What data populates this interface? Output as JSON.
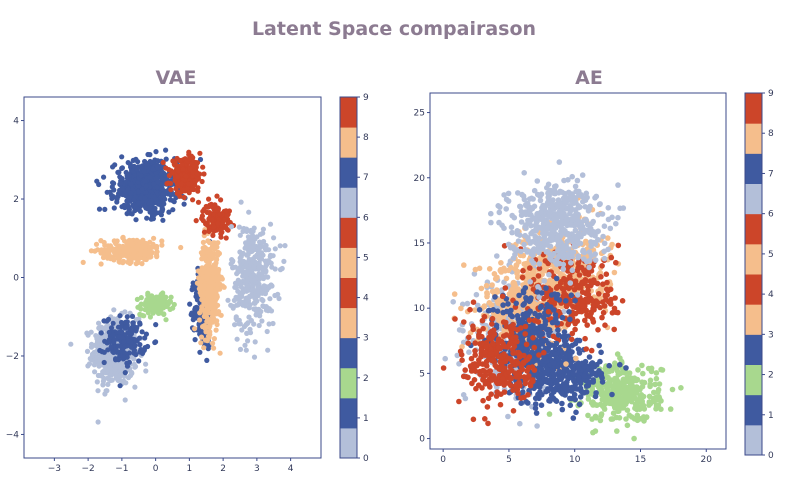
{
  "title": "Latent Space compairason",
  "chart_data": [
    {
      "type": "scatter",
      "title": "VAE",
      "xlim": [
        -3.9,
        4.9
      ],
      "ylim": [
        -4.6,
        4.6
      ],
      "x_ticks": [
        -3,
        -2,
        -1,
        0,
        1,
        2,
        3,
        4
      ],
      "y_ticks": [
        -4,
        -2,
        0,
        2,
        4
      ],
      "colorbar": {
        "min": 0,
        "max": 9,
        "ticks": [
          0,
          1,
          2,
          3,
          4,
          5,
          6,
          7,
          8,
          9
        ]
      },
      "colormap": [
        "#b3bfd9",
        "#3f5aa0",
        "#a8d88e",
        "#3f5aa0",
        "#f5be8c",
        "#cc4529",
        "#f5be8c",
        "#cc4529",
        "#b3bfd9",
        "#3f5aa0",
        "#f5be8c",
        "#cc4529"
      ],
      "clusters": [
        {
          "label": 0,
          "center": [
            -1.2,
            -1.9
          ],
          "spread": [
            0.65,
            0.85
          ],
          "count": 500
        },
        {
          "label": 1,
          "center": [
            -0.9,
            -1.6
          ],
          "spread": [
            0.6,
            0.6
          ],
          "count": 150
        },
        {
          "label": 2,
          "center": [
            0.0,
            -0.7
          ],
          "spread": [
            0.45,
            0.25
          ],
          "count": 150
        },
        {
          "label": 3,
          "center": [
            1.4,
            -0.8
          ],
          "spread": [
            0.25,
            1.0
          ],
          "count": 250
        },
        {
          "label": 4,
          "center": [
            -0.7,
            0.7
          ],
          "spread": [
            0.9,
            0.3
          ],
          "count": 220
        },
        {
          "label": 5,
          "center": [
            1.6,
            -0.2
          ],
          "spread": [
            0.3,
            1.2
          ],
          "count": 400
        },
        {
          "label": 6,
          "center": [
            1.8,
            1.5
          ],
          "spread": [
            0.4,
            0.4
          ],
          "count": 120
        },
        {
          "label": 7,
          "center": [
            2.9,
            0.0
          ],
          "spread": [
            0.65,
            1.4
          ],
          "count": 350
        },
        {
          "label": 8,
          "center": [
            -0.3,
            2.3
          ],
          "spread": [
            0.9,
            0.65
          ],
          "count": 650
        },
        {
          "label": 9,
          "center": [
            0.9,
            2.6
          ],
          "spread": [
            0.45,
            0.4
          ],
          "count": 250
        }
      ]
    },
    {
      "type": "scatter",
      "title": "AE",
      "xlim": [
        -1,
        21.5
      ],
      "ylim": [
        -0.8,
        26.5
      ],
      "x_ticks": [
        0,
        5,
        10,
        15,
        20
      ],
      "y_ticks": [
        0,
        5,
        10,
        15,
        20,
        25
      ],
      "colorbar": {
        "min": 0,
        "max": 9,
        "ticks": [
          0,
          1,
          2,
          3,
          4,
          5,
          6,
          7,
          8,
          9
        ]
      },
      "colormap": [
        "#b3bfd9",
        "#3f5aa0",
        "#a8d88e",
        "#3f5aa0",
        "#f5be8c",
        "#cc4529",
        "#f5be8c",
        "#cc4529",
        "#b3bfd9",
        "#3f5aa0",
        "#f5be8c",
        "#cc4529"
      ],
      "clusters": [
        {
          "label": 0,
          "center": [
            5.5,
            8.0
          ],
          "spread": [
            3.2,
            4.0
          ],
          "count": 400
        },
        {
          "label": 2,
          "center": [
            13.5,
            3.5
          ],
          "spread": [
            3.0,
            2.2
          ],
          "count": 350
        },
        {
          "label": 3,
          "center": [
            9.0,
            5.0
          ],
          "spread": [
            3.0,
            2.4
          ],
          "count": 350
        },
        {
          "label": 4,
          "center": [
            6.0,
            10.5
          ],
          "spread": [
            3.5,
            3.5
          ],
          "count": 300
        },
        {
          "label": 5,
          "center": [
            9.0,
            13.0
          ],
          "spread": [
            3.5,
            3.3
          ],
          "count": 350
        },
        {
          "label": 6,
          "center": [
            10.0,
            11.0
          ],
          "spread": [
            3.3,
            3.5
          ],
          "count": 280
        },
        {
          "label": 7,
          "center": [
            8.5,
            16.5
          ],
          "spread": [
            3.5,
            3.2
          ],
          "count": 500
        },
        {
          "label": 8,
          "center": [
            6.5,
            7.5
          ],
          "spread": [
            3.0,
            4.0
          ],
          "count": 300
        },
        {
          "label": 9,
          "center": [
            4.5,
            6.0
          ],
          "spread": [
            3.0,
            3.5
          ],
          "count": 280
        }
      ]
    }
  ]
}
